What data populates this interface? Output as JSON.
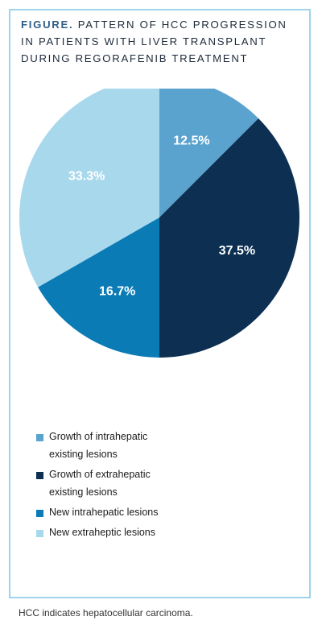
{
  "figure": {
    "title_lead": "FIGURE.",
    "title_rest": "PATTERN OF HCC PROGRESSION IN PATIENTS WITH LIVER TRANSPLANT DURING REGORAFENIB TREATMENT",
    "footnote": "HCC indicates hepatocellular carcinoma."
  },
  "chart_data": {
    "type": "pie",
    "title": "PATTERN OF HCC PROGRESSION IN PATIENTS WITH LIVER TRANSPLANT DURING REGORAFENIB TREATMENT",
    "unit": "%",
    "legend_placement": "bottom",
    "slices": [
      {
        "label": "Growth of intrahepatic existing lesions",
        "value": 12.5,
        "display": "12.5%",
        "color": "#5ba3cf",
        "label_color": "#ffffff"
      },
      {
        "label": "Growth of extrahepatic existing lesions",
        "value": 37.5,
        "display": "37.5%",
        "color": "#0d2f52",
        "label_color": "#ffffff"
      },
      {
        "label": "New intrahepatic lesions",
        "value": 16.7,
        "display": "16.7%",
        "color": "#0a7bb5",
        "label_color": "#ffffff"
      },
      {
        "label": "New extraheptic lesions",
        "value": 33.3,
        "display": "33.3%",
        "color": "#a8d8ec",
        "label_color": "#ffffff"
      }
    ]
  }
}
